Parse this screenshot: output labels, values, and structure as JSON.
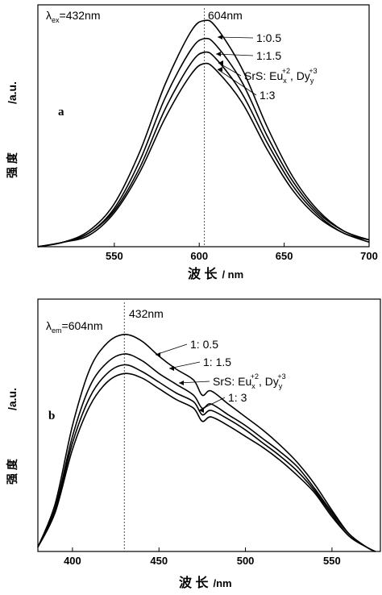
{
  "chart_data": [
    {
      "type": "line",
      "panel_label": "a",
      "excitation_label": "λex=432nm",
      "excitation_prefix": "λ",
      "excitation_sub": "ex",
      "excitation_value": "=432nm",
      "peak_marker_label": "604nm",
      "peak_marker_x": 603,
      "xlabel_cn": "波 长",
      "xlabel_unit": "/ nm",
      "ylabel_cn": "强 度",
      "ylabel_unit": "/a.u.",
      "xlim": [
        505,
        700
      ],
      "ylim": [
        0,
        1.0
      ],
      "xticks": [
        550,
        600,
        650,
        700
      ],
      "annotation_text": "SrS: Eu +2, Dy +3",
      "annotation_main": "SrS: Eu",
      "annotation_eu_sub": "x",
      "annotation_eu_sup": "+2",
      "annotation_mid": ", Dy",
      "annotation_dy_sub": "y",
      "annotation_dy_sup": "+3",
      "x": [
        505,
        520,
        535,
        550,
        565,
        580,
        595,
        603,
        610,
        625,
        640,
        655,
        670,
        685,
        700
      ],
      "series": [
        {
          "name": "1:0.5",
          "values": [
            0.0,
            0.02,
            0.07,
            0.19,
            0.42,
            0.72,
            0.95,
            1.0,
            0.97,
            0.79,
            0.53,
            0.31,
            0.16,
            0.07,
            0.03
          ]
        },
        {
          "name": "1:1.5",
          "values": [
            0.0,
            0.02,
            0.06,
            0.17,
            0.38,
            0.66,
            0.87,
            0.92,
            0.89,
            0.73,
            0.49,
            0.29,
            0.15,
            0.07,
            0.03
          ]
        },
        {
          "name": "",
          "values": [
            0.0,
            0.02,
            0.06,
            0.16,
            0.35,
            0.61,
            0.81,
            0.86,
            0.83,
            0.68,
            0.46,
            0.27,
            0.14,
            0.06,
            0.03
          ]
        },
        {
          "name": "1:3",
          "values": [
            0.0,
            0.02,
            0.05,
            0.15,
            0.33,
            0.57,
            0.76,
            0.81,
            0.78,
            0.64,
            0.43,
            0.25,
            0.13,
            0.06,
            0.02
          ]
        }
      ]
    },
    {
      "type": "line",
      "panel_label": "b",
      "excitation_label": "λem=604nm",
      "excitation_prefix": "λ",
      "excitation_sub": "em",
      "excitation_value": "=604nm",
      "peak_marker_label": "432nm",
      "peak_marker_x": 430,
      "xlabel_cn": "波 长",
      "xlabel_unit": "/nm",
      "ylabel_cn": "强 度",
      "ylabel_unit": "/a.u.",
      "xlim": [
        380,
        578
      ],
      "ylim": [
        0,
        1.0
      ],
      "xticks": [
        400,
        450,
        500,
        550
      ],
      "annotation_text": "SrS: Eu +2, Dy +3",
      "annotation_main": "SrS: Eu",
      "annotation_eu_sub": "x",
      "annotation_eu_sup": "+2",
      "annotation_mid": ", Dy",
      "annotation_dy_sub": "y",
      "annotation_dy_sup": "+3",
      "x": [
        380,
        390,
        400,
        410,
        420,
        430,
        440,
        450,
        460,
        470,
        475,
        480,
        490,
        500,
        510,
        520,
        530,
        540,
        550,
        560,
        570,
        575
      ],
      "series": [
        {
          "name": "1: 0.5",
          "values": [
            0.02,
            0.22,
            0.58,
            0.84,
            0.96,
            1.0,
            0.97,
            0.9,
            0.84,
            0.79,
            0.72,
            0.74,
            0.68,
            0.62,
            0.56,
            0.49,
            0.41,
            0.31,
            0.19,
            0.08,
            0.02,
            0.0
          ]
        },
        {
          "name": "1: 1.5",
          "values": [
            0.02,
            0.2,
            0.53,
            0.76,
            0.87,
            0.91,
            0.88,
            0.82,
            0.77,
            0.72,
            0.66,
            0.68,
            0.63,
            0.58,
            0.52,
            0.46,
            0.39,
            0.29,
            0.18,
            0.08,
            0.02,
            0.0
          ]
        },
        {
          "name": "",
          "values": [
            0.02,
            0.19,
            0.5,
            0.71,
            0.82,
            0.86,
            0.83,
            0.78,
            0.73,
            0.69,
            0.63,
            0.65,
            0.61,
            0.56,
            0.5,
            0.44,
            0.37,
            0.28,
            0.17,
            0.07,
            0.02,
            0.0
          ]
        },
        {
          "name": "1: 3",
          "values": [
            0.02,
            0.18,
            0.47,
            0.67,
            0.78,
            0.82,
            0.8,
            0.75,
            0.7,
            0.66,
            0.6,
            0.62,
            0.58,
            0.53,
            0.48,
            0.42,
            0.35,
            0.27,
            0.16,
            0.07,
            0.02,
            0.0
          ]
        }
      ]
    }
  ]
}
